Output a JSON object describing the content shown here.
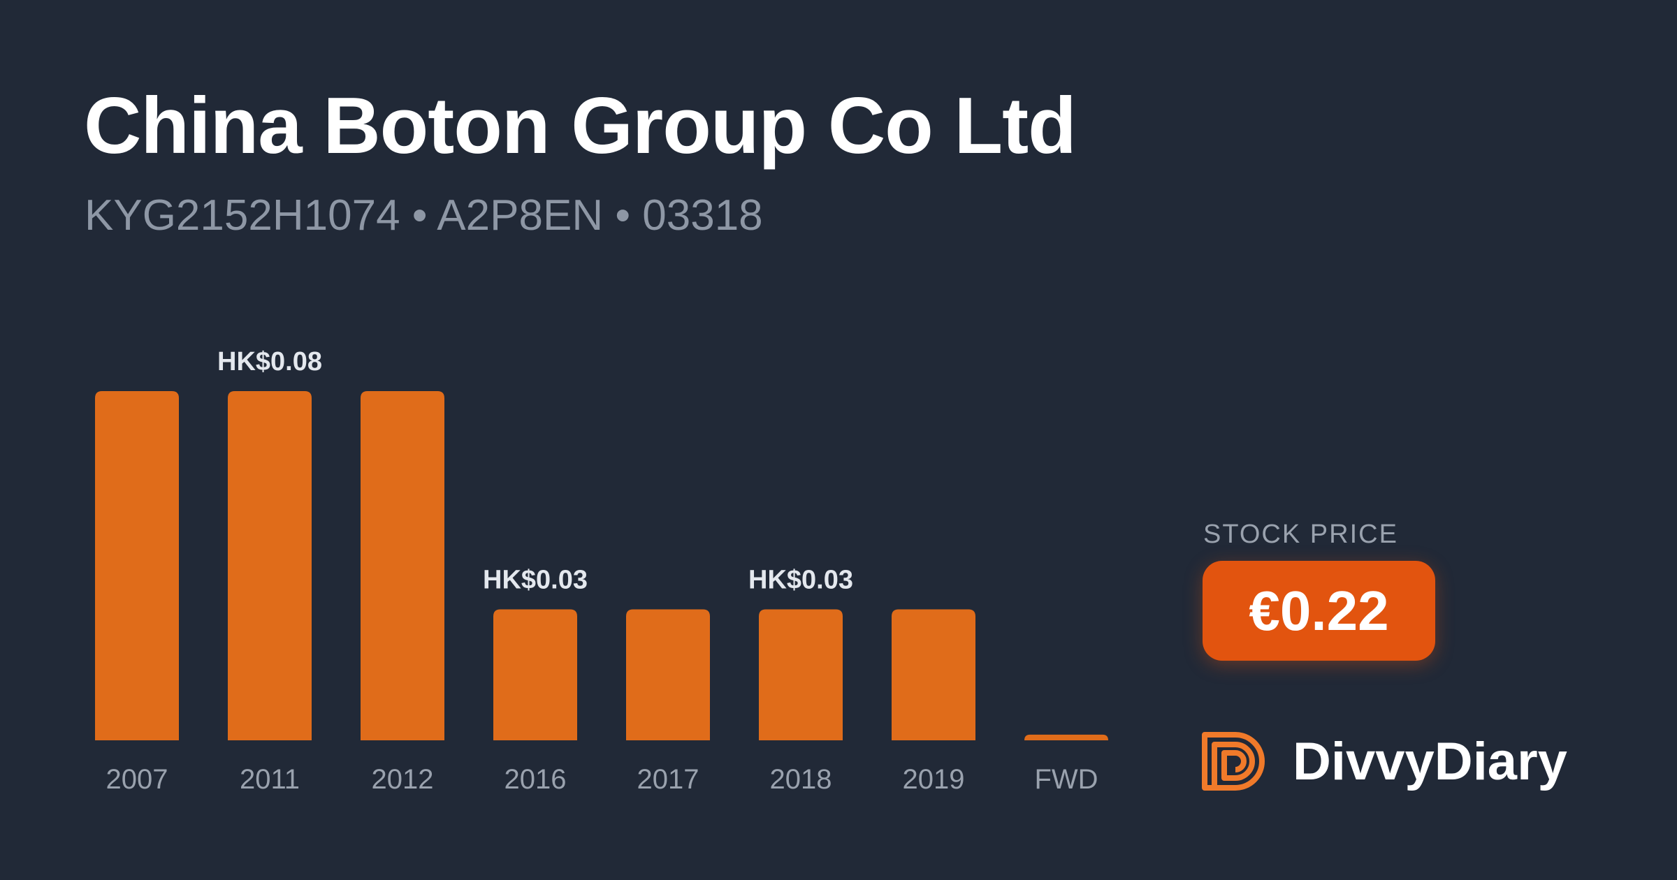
{
  "header": {
    "title": "China Boton Group Co Ltd",
    "identifiers": "KYG2152H1074 • A2P8EN • 03318"
  },
  "chart_data": {
    "type": "bar",
    "categories": [
      "2007",
      "2011",
      "2012",
      "2016",
      "2017",
      "2018",
      "2019",
      "FWD"
    ],
    "values": [
      0.08,
      0.08,
      0.08,
      0.03,
      0.03,
      0.03,
      0.03,
      0.0013
    ],
    "value_labels": [
      "",
      "HK$0.08",
      "",
      "HK$0.03",
      "",
      "HK$0.03",
      "",
      ""
    ],
    "title": "",
    "xlabel": "",
    "ylabel": "",
    "ylim": [
      0,
      0.08
    ],
    "grid": false,
    "legend": "none",
    "colors": {
      "bar": "#e06c1a",
      "value_label": "#e4e8ee",
      "tick_label": "#9aa2ae"
    }
  },
  "stock_price": {
    "label": "STOCK PRICE",
    "value": "€0.22",
    "badge_color": "#e2540f"
  },
  "brand": {
    "name": "DivvyDiary",
    "logo_icon": "divvydiary-logo-icon",
    "logo_color": "#f07a2a"
  },
  "colors": {
    "background": "#212937",
    "title": "#ffffff",
    "subtitle": "#8e97a5"
  }
}
